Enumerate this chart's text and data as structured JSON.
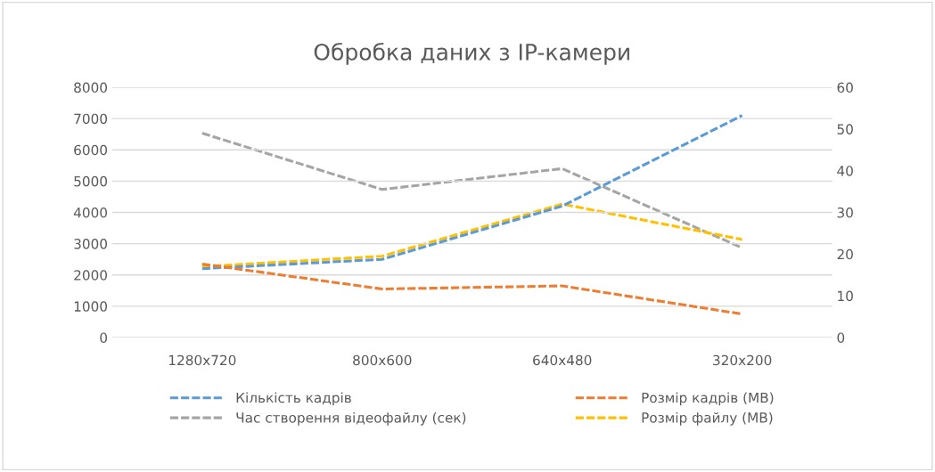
{
  "chart_data": {
    "type": "line",
    "title": "Обробка даних з IP-камери",
    "categories": [
      "1280x720",
      "800x600",
      "640x480",
      "320x200"
    ],
    "series": [
      {
        "name": "Кількість кадрів",
        "color": "#5b9bd5",
        "values": [
          2200,
          2500,
          4200,
          7100
        ],
        "line_style": "dashed"
      },
      {
        "name": "Розмір кадрів (MB)",
        "color": "#ed7d31",
        "values": [
          2350,
          1550,
          1650,
          750
        ],
        "line_style": "dashed"
      },
      {
        "name": "Час створення відеофайлу (сек)",
        "color": "#a5a5a5",
        "values": [
          49,
          35.5,
          40.5,
          21.5
        ],
        "axis": "y2",
        "line_style": "dashed"
      },
      {
        "name": "Розмір файлу (MB)",
        "color": "#ffc000",
        "values": [
          17,
          19.5,
          32,
          23.5
        ],
        "axis": "y2",
        "line_style": "dashed"
      }
    ],
    "ylim": [
      0,
      8000
    ],
    "yticks": [
      0,
      1000,
      2000,
      3000,
      4000,
      5000,
      6000,
      7000,
      8000
    ],
    "y2lim": [
      0,
      60
    ],
    "y2ticks": [
      0,
      10,
      20,
      30,
      40,
      50,
      60
    ],
    "grid": "y",
    "legend": "bottom",
    "marker": "none"
  }
}
